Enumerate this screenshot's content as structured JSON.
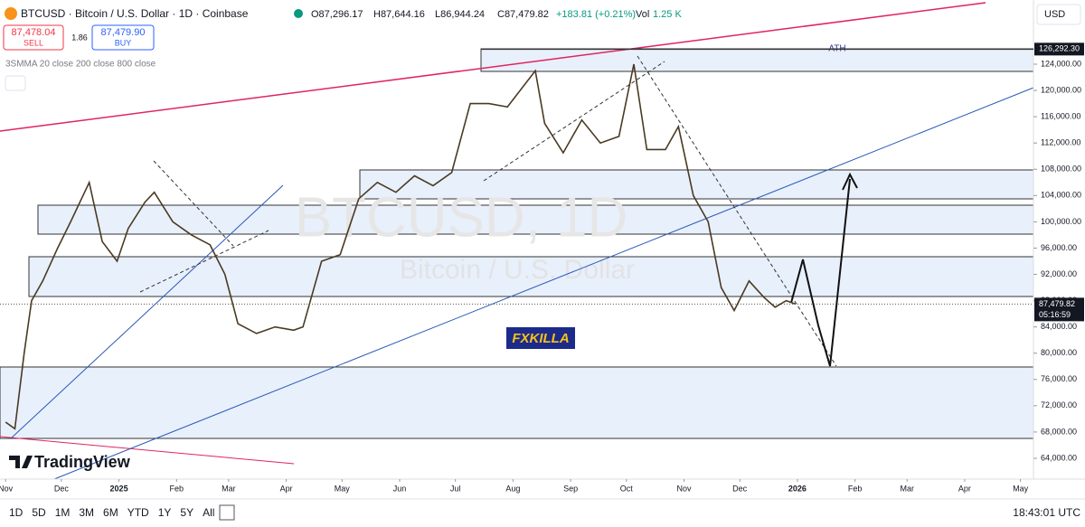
{
  "header": {
    "symbol_title": "BTCUSD · Bitcoin / U.S. Dollar · 1D · Coinbase",
    "open": "O87,296.17",
    "high": "H87,644.16",
    "low": "L86,944.24",
    "close": "C87,479.82",
    "change": "+183.81 (+0.21%)",
    "vol_label": "Vol",
    "vol": "1.25 K",
    "sell_price": "87,478.04",
    "sell_label": "SELL",
    "spread": "1.86",
    "buy_price": "87,479.90",
    "buy_label": "BUY",
    "indicator": "3SMMA 20 close 200 close 800 close",
    "currency": "USD"
  },
  "watermark": {
    "symbol": "BTCUSD, 1D",
    "name": "Bitcoin / U.S. Dollar",
    "badge": "FXKILLA",
    "logo": "TradingView"
  },
  "toolbar": {
    "ranges": [
      "1D",
      "5D",
      "1M",
      "3M",
      "6M",
      "YTD",
      "1Y",
      "5Y",
      "All"
    ],
    "clock": "18:43:01 UTC"
  },
  "chart_data": {
    "type": "line",
    "color": "#4a3a22",
    "x": [
      0,
      5,
      10,
      14,
      20,
      28,
      35,
      45,
      52,
      60,
      66,
      75,
      80,
      90,
      100,
      110,
      118,
      125,
      135,
      145,
      155,
      160,
      170,
      180,
      190,
      200,
      210,
      220,
      230,
      240,
      250,
      260,
      270,
      285,
      290,
      300,
      310,
      320,
      330,
      338,
      345,
      355,
      362,
      370,
      378,
      385,
      392,
      400,
      408,
      414,
      420,
      425
    ],
    "values": [
      69500,
      68500,
      80000,
      88000,
      91000,
      96000,
      100000,
      106000,
      97000,
      94000,
      99000,
      103000,
      104500,
      100000,
      98000,
      96500,
      92000,
      84500,
      83000,
      84000,
      83500,
      84000,
      94000,
      95000,
      103500,
      106000,
      104500,
      107000,
      105500,
      107500,
      118000,
      118000,
      117500,
      123000,
      115000,
      110500,
      115500,
      112000,
      113000,
      124000,
      111000,
      111000,
      114500,
      104000,
      100000,
      90000,
      86500,
      91000,
      88500,
      87000,
      88000,
      87479.82
    ],
    "xlim": [
      -3,
      553
    ],
    "xticks": [
      {
        "value": 0,
        "label": "Nov"
      },
      {
        "value": 30,
        "label": "Dec"
      },
      {
        "value": 61,
        "label": "2025"
      },
      {
        "value": 92,
        "label": "Feb"
      },
      {
        "value": 120,
        "label": "Mar"
      },
      {
        "value": 151,
        "label": "Apr"
      },
      {
        "value": 181,
        "label": "May"
      },
      {
        "value": 212,
        "label": "Jun"
      },
      {
        "value": 242,
        "label": "Jul"
      },
      {
        "value": 273,
        "label": "Aug"
      },
      {
        "value": 304,
        "label": "Sep"
      },
      {
        "value": 334,
        "label": "Oct"
      },
      {
        "value": 365,
        "label": "Nov"
      },
      {
        "value": 395,
        "label": "Dec"
      },
      {
        "value": 426,
        "label": "2026"
      },
      {
        "value": 457,
        "label": "Feb"
      },
      {
        "value": 485,
        "label": "Mar"
      },
      {
        "value": 516,
        "label": "Apr"
      },
      {
        "value": 546,
        "label": "May"
      }
    ],
    "ylim": [
      58770,
      133770
    ],
    "yticks": [
      {
        "value": 64000,
        "label": "64,000.00"
      },
      {
        "value": 68000,
        "label": "68,000.00"
      },
      {
        "value": 72000,
        "label": "72,000.00"
      },
      {
        "value": 76000,
        "label": "76,000.00"
      },
      {
        "value": 80000,
        "label": "80,000.00"
      },
      {
        "value": 84000,
        "label": "84,000.00"
      },
      {
        "value": 88000,
        "label": "88,000.00"
      },
      {
        "value": 92000,
        "label": "92,000.00"
      },
      {
        "value": 96000,
        "label": "96,000.00"
      },
      {
        "value": 100000,
        "label": "100,000.00"
      },
      {
        "value": 104000,
        "label": "104,000.00"
      },
      {
        "value": 108000,
        "label": "108,000.00"
      },
      {
        "value": 112000,
        "label": "112,000.00"
      },
      {
        "value": 116000,
        "label": "116,000.00"
      },
      {
        "value": 120000,
        "label": "120,000.00"
      },
      {
        "value": 124000,
        "label": "124,000.00"
      }
    ],
    "grid": false,
    "last_price": {
      "value": 87479.82,
      "label": "87,479.82"
    },
    "countdown": "05:16:59",
    "ath_price": {
      "value": 126292.3,
      "label": "126,292.30"
    },
    "ath_label": "ATH"
  }
}
